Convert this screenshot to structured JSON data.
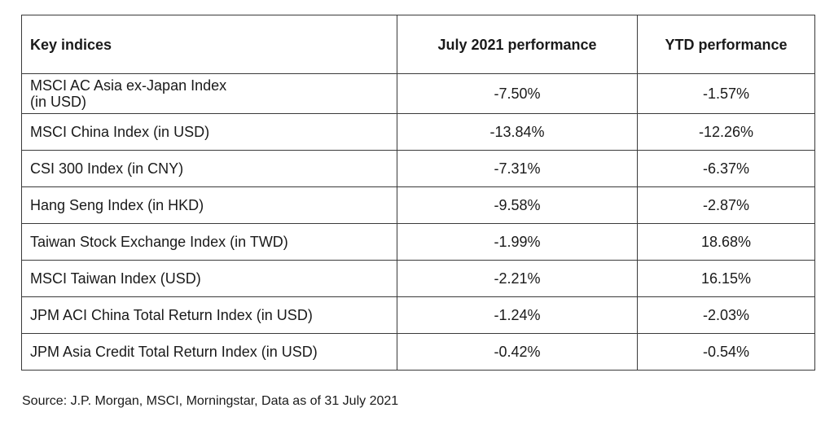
{
  "table": {
    "headers": [
      "Key indices",
      "July 2021 performance",
      "YTD performance"
    ],
    "rows": [
      {
        "name": "MSCI AC Asia ex-Japan Index\n (in USD)",
        "july_2021": "-7.50%",
        "ytd": "-1.57%"
      },
      {
        "name": "MSCI China Index (in USD)",
        "july_2021": "-13.84%",
        "ytd": "-12.26%"
      },
      {
        "name": "CSI 300 Index (in CNY)",
        "july_2021": "-7.31%",
        "ytd": "-6.37%"
      },
      {
        "name": "Hang Seng Index (in HKD)",
        "july_2021": "-9.58%",
        "ytd": "-2.87%"
      },
      {
        "name": "Taiwan Stock Exchange Index (in TWD)",
        "july_2021": "-1.99%",
        "ytd": "18.68%"
      },
      {
        "name": "MSCI Taiwan Index (USD)",
        "july_2021": "-2.21%",
        "ytd": "16.15%"
      },
      {
        "name": "JPM ACI China Total Return Index (in USD)",
        "july_2021": "-1.24%",
        "ytd": "-2.03%"
      },
      {
        "name": "JPM Asia Credit Total Return Index (in USD)",
        "july_2021": "-0.42%",
        "ytd": "-0.54%"
      }
    ]
  },
  "source_note": "Source: J.P. Morgan, MSCI, Morningstar, Data as of 31 July 2021"
}
